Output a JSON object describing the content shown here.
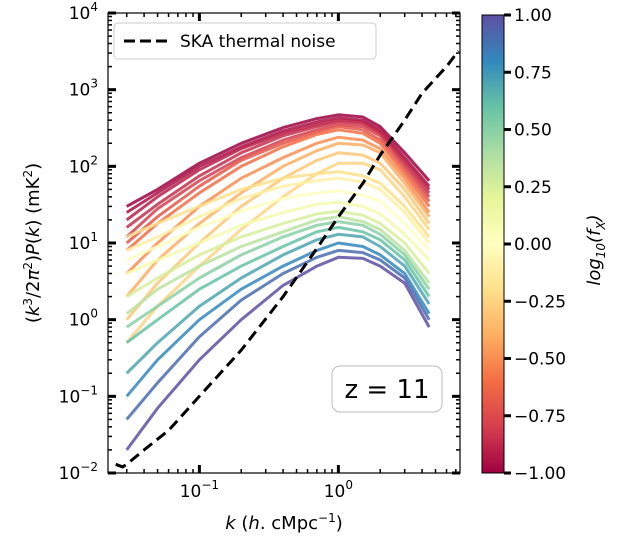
{
  "chart_data": {
    "type": "line",
    "xlabel": "k (h. cMpc^-1)",
    "ylabel": "(k^3/2π^2)P(k) (mK^2)",
    "xscale": "log",
    "yscale": "log",
    "xlim": [
      0.022,
      7.5
    ],
    "ylim": [
      0.01,
      10000
    ],
    "x_ticks": [
      0.1,
      1.0
    ],
    "y_ticks": [
      0.01,
      0.1,
      1,
      10,
      100,
      1000,
      10000
    ],
    "grid": false,
    "legend": {
      "placement": "top-left",
      "entries": [
        "SKA thermal noise"
      ]
    },
    "annotation": "z = 11",
    "noise_series": {
      "name": "SKA thermal noise",
      "style": "dashed",
      "color": "#000000",
      "x": [
        0.025,
        0.028,
        0.03,
        0.04,
        0.06,
        0.1,
        0.2,
        0.4,
        0.7,
        1.0,
        1.5,
        2.0,
        3.0,
        4.0,
        5.0,
        6.0,
        7.3
      ],
      "y": [
        0.013,
        0.012,
        0.013,
        0.02,
        0.036,
        0.1,
        0.4,
        2.0,
        8.5,
        22,
        60,
        140,
        400,
        900,
        1400,
        2000,
        3200
      ]
    },
    "model_curves": {
      "color_variable": "log10(f_X)",
      "x": [
        0.03,
        0.05,
        0.1,
        0.2,
        0.4,
        0.7,
        1.0,
        1.5,
        2.0,
        3.0,
        4.5
      ],
      "curves": [
        {
          "c": -1.0,
          "y": [
            30,
            50,
            110,
            200,
            320,
            420,
            470,
            440,
            330,
            150,
            65
          ]
        },
        {
          "c": -0.95,
          "y": [
            25,
            45,
            100,
            180,
            290,
            380,
            430,
            400,
            300,
            130,
            55
          ]
        },
        {
          "c": -0.9,
          "y": [
            20,
            40,
            90,
            170,
            270,
            350,
            400,
            380,
            280,
            120,
            50
          ]
        },
        {
          "c": -0.85,
          "y": [
            16,
            32,
            75,
            150,
            250,
            330,
            380,
            360,
            270,
            110,
            45
          ]
        },
        {
          "c": -0.8,
          "y": [
            12,
            28,
            65,
            130,
            220,
            300,
            350,
            330,
            250,
            100,
            40
          ]
        },
        {
          "c": -0.7,
          "y": [
            10,
            22,
            55,
            120,
            200,
            280,
            330,
            300,
            220,
            90,
            35
          ]
        },
        {
          "c": -0.6,
          "y": [
            8,
            18,
            45,
            100,
            180,
            260,
            300,
            270,
            200,
            80,
            30
          ]
        },
        {
          "c": -0.5,
          "y": [
            4,
            10,
            30,
            70,
            130,
            200,
            240,
            220,
            170,
            70,
            25
          ]
        },
        {
          "c": -0.4,
          "y": [
            2,
            6,
            18,
            45,
            100,
            160,
            200,
            190,
            150,
            60,
            22
          ]
        },
        {
          "c": -0.3,
          "y": [
            1.0,
            3,
            10,
            30,
            70,
            120,
            150,
            140,
            110,
            50,
            18
          ]
        },
        {
          "c": -0.25,
          "y": [
            0.5,
            1.5,
            5,
            15,
            40,
            80,
            110,
            110,
            90,
            40,
            15
          ]
        },
        {
          "c": -0.2,
          "y": [
            12,
            18,
            30,
            50,
            70,
            80,
            85,
            75,
            60,
            30,
            12
          ]
        },
        {
          "c": -0.1,
          "y": [
            8,
            12,
            22,
            38,
            55,
            65,
            70,
            62,
            50,
            25,
            10
          ]
        },
        {
          "c": 0.0,
          "y": [
            6,
            9,
            16,
            26,
            38,
            45,
            48,
            42,
            35,
            18,
            8
          ]
        },
        {
          "c": 0.1,
          "y": [
            4,
            6,
            10,
            17,
            25,
            32,
            34,
            30,
            24,
            13,
            6
          ]
        },
        {
          "c": 0.25,
          "y": [
            2,
            3.5,
            7,
            12,
            18,
            24,
            26,
            23,
            18,
            10,
            4
          ]
        },
        {
          "c": 0.35,
          "y": [
            1.2,
            2.5,
            5,
            9,
            14,
            20,
            22,
            19,
            15,
            8,
            3
          ]
        },
        {
          "c": 0.5,
          "y": [
            0.8,
            1.5,
            3.5,
            7,
            12,
            17,
            19,
            17,
            13,
            7,
            2.5
          ]
        },
        {
          "c": 0.6,
          "y": [
            0.5,
            1,
            2.5,
            5,
            9,
            14,
            16,
            14,
            11,
            6,
            2
          ]
        },
        {
          "c": 0.7,
          "y": [
            0.2,
            0.5,
            1.5,
            3.5,
            7,
            11,
            13,
            12,
            9,
            5,
            1.6
          ]
        },
        {
          "c": 0.8,
          "y": [
            0.1,
            0.3,
            1,
            2.5,
            5,
            8,
            10,
            9,
            7,
            4,
            1.2
          ]
        },
        {
          "c": 0.9,
          "y": [
            0.05,
            0.15,
            0.6,
            1.8,
            4,
            6.5,
            8,
            7.5,
            6,
            3.5,
            1.0
          ]
        },
        {
          "c": 1.0,
          "y": [
            0.02,
            0.07,
            0.3,
            1.0,
            2.8,
            5,
            6.5,
            6.3,
            5,
            3,
            0.8
          ]
        }
      ]
    },
    "colorbar": {
      "label": "log10(f_X)",
      "range": [
        -1.0,
        1.0
      ],
      "ticks": [
        "1.00",
        "0.75",
        "0.50",
        "0.25",
        "0.00",
        "−0.25",
        "−0.50",
        "−0.75",
        "−1.00"
      ],
      "colormap": "Spectral",
      "stops": [
        "#9e0142",
        "#d53e4f",
        "#f46d43",
        "#fdae61",
        "#fee08b",
        "#ffffbf",
        "#e6f598",
        "#abdda4",
        "#66c2a5",
        "#3288bd",
        "#5e4fa2"
      ]
    }
  }
}
